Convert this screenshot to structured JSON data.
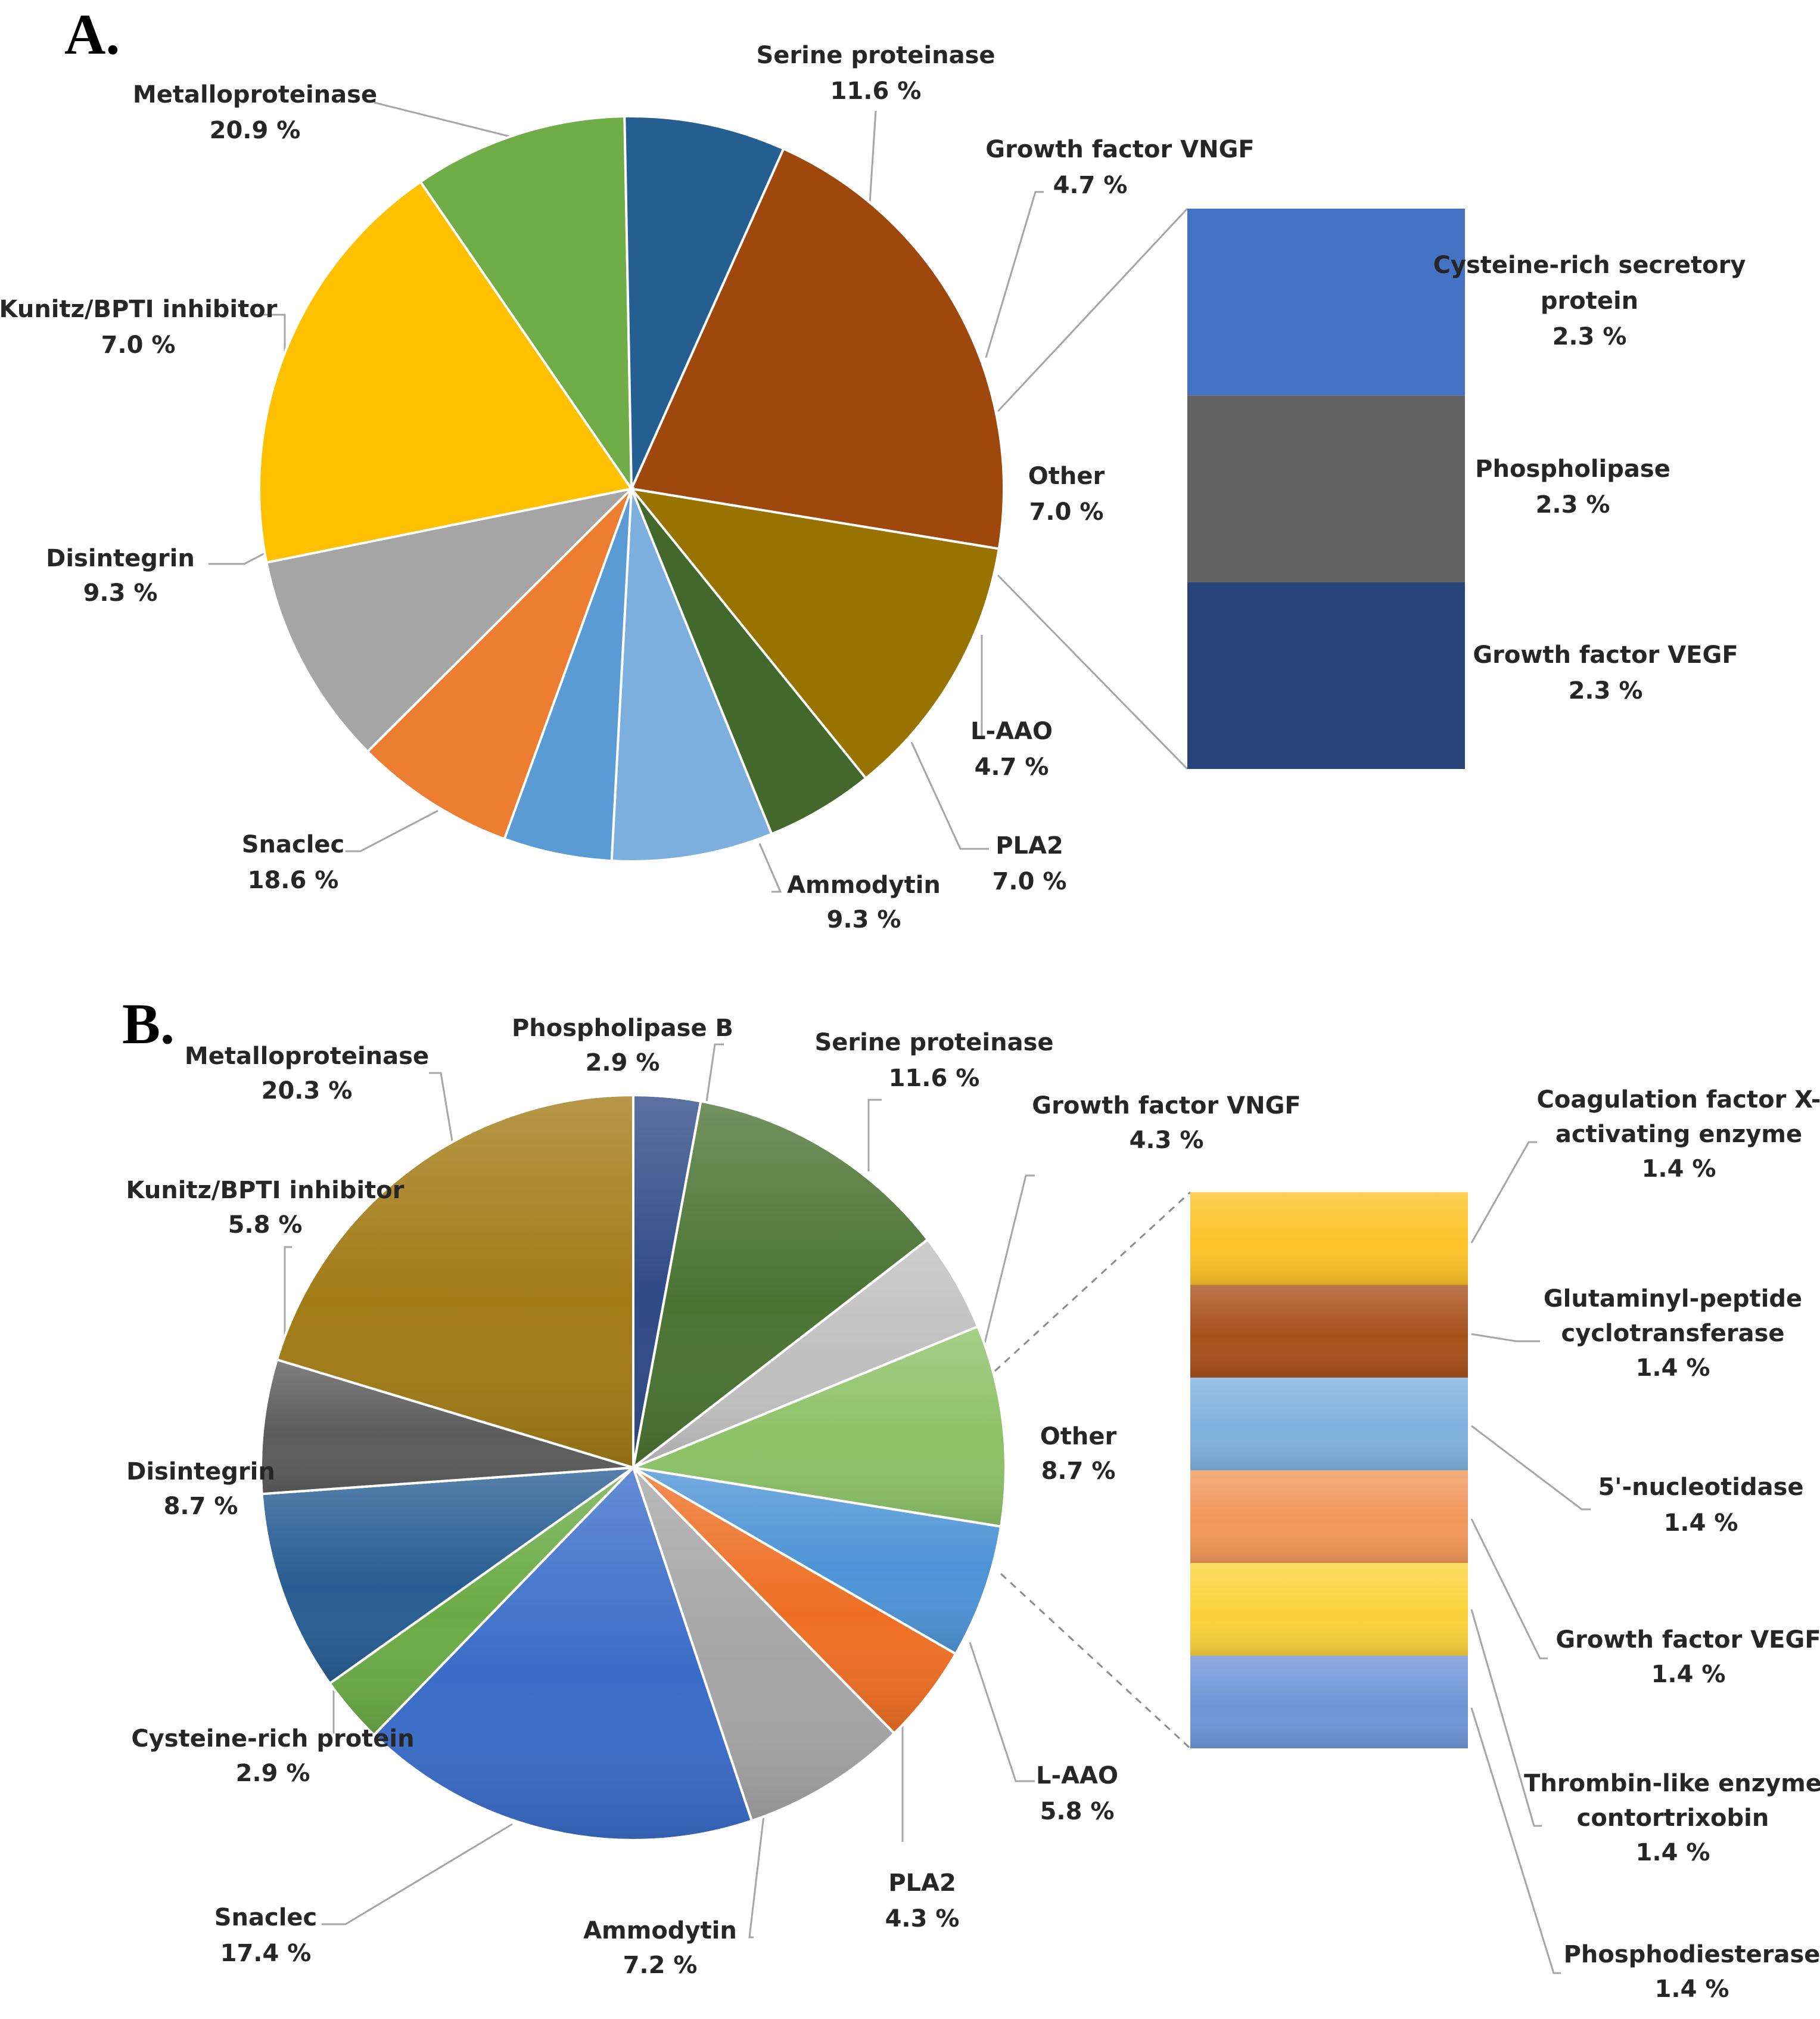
{
  "chart_data": [
    {
      "panel": "A.",
      "type": "bar-of-pie",
      "slices": [
        {
          "name": "Metalloproteinase",
          "value": 20.9,
          "value_label": "20.9 %",
          "color": "#9e480e"
        },
        {
          "name": "Serine proteinase",
          "value": 11.6,
          "value_label": "11.6 %",
          "color": "#997300"
        },
        {
          "name": "Growth factor VNGF",
          "value": 4.7,
          "value_label": "4.7 %",
          "color": "#43682b"
        },
        {
          "name": "Other",
          "value": 7.0,
          "value_label": "7.0 %",
          "color": "#7cafdd"
        },
        {
          "name": "L-AAO",
          "value": 4.7,
          "value_label": "4.7 %",
          "color": "#5b9bd5"
        },
        {
          "name": "PLA2",
          "value": 7.0,
          "value_label": "7.0 %",
          "color": "#ed7d31"
        },
        {
          "name": "Ammodytin",
          "value": 9.3,
          "value_label": "9.3 %",
          "color": "#a5a5a5"
        },
        {
          "name": "Snaclec",
          "value": 18.6,
          "value_label": "18.6 %",
          "color": "#ffc000"
        },
        {
          "name": "Disintegrin",
          "value": 9.3,
          "value_label": "9.3 %",
          "color": "#70ad47"
        },
        {
          "name": "Kunitz/BPTI inhibitor",
          "value": 7.0,
          "value_label": "7.0 %",
          "color": "#255e91"
        }
      ],
      "other_breakdown": [
        {
          "name_lines": [
            "Cysteine-rich secretory",
            "protein"
          ],
          "value": 2.3,
          "value_label": "2.3 %",
          "color": "#4472c4"
        },
        {
          "name_lines": [
            "Phospholipase"
          ],
          "value": 2.3,
          "value_label": "2.3 %",
          "color": "#636363"
        },
        {
          "name_lines": [
            "Growth factor VEGF"
          ],
          "value": 2.3,
          "value_label": "2.3 %",
          "color": "#264478"
        }
      ]
    },
    {
      "panel": "B.",
      "type": "bar-of-pie",
      "slices": [
        {
          "name": "Phospholipase  B",
          "value": 2.9,
          "value_label": "2.9 %",
          "color": "#2e4a87"
        },
        {
          "name": "Serine proteinase",
          "value": 11.6,
          "value_label": "11.6 %",
          "color": "#4a7332"
        },
        {
          "name": "Growth factor VNGF",
          "value": 4.3,
          "value_label": "4.3 %",
          "color": "#bfbfbf"
        },
        {
          "name": "Other",
          "value": 8.7,
          "value_label": "8.7 %",
          "color": "#8cc267"
        },
        {
          "name": "L-AAO",
          "value": 5.8,
          "value_label": "5.8 %",
          "color": "#4d94d6"
        },
        {
          "name": "PLA2",
          "value": 4.3,
          "value_label": "4.3 %",
          "color": "#ee6f24"
        },
        {
          "name": "Ammodytin",
          "value": 7.2,
          "value_label": "7.2 %",
          "color": "#a5a5a5"
        },
        {
          "name": "Snaclec",
          "value": 17.4,
          "value_label": "17.4 %",
          "color": "#3a6cc8"
        },
        {
          "name": "Cysteine-rich protein",
          "value": 2.9,
          "value_label": "2.9 %",
          "color": "#6bab46"
        },
        {
          "name": "Disintegrin",
          "value": 8.7,
          "value_label": "8.7 %",
          "color": "#285d93"
        },
        {
          "name": "Kunitz/BPTI inhibitor",
          "value": 5.8,
          "value_label": "5.8 %",
          "color": "#5c5c5c"
        },
        {
          "name": "Metalloproteinase",
          "value": 20.3,
          "value_label": "20.3 %",
          "color": "#a27b16"
        }
      ],
      "other_breakdown": [
        {
          "name_lines": [
            "Coagulation factor X-",
            "activating enzyme"
          ],
          "value": 1.4,
          "value_label": "1.4 %",
          "color": "#fcc226"
        },
        {
          "name_lines": [
            "Glutaminyl-peptide",
            "cyclotransferase"
          ],
          "value": 1.4,
          "value_label": "1.4 %",
          "color": "#a8501a"
        },
        {
          "name_lines": [
            "5'-nucleotidase"
          ],
          "value": 1.4,
          "value_label": "1.4 %",
          "color": "#7fb1df"
        },
        {
          "name_lines": [
            "Growth factor VEGF"
          ],
          "value": 1.4,
          "value_label": "1.4 %",
          "color": "#f2975a"
        },
        {
          "name_lines": [
            "Thrombin-like enzyme",
            "contortrixobin"
          ],
          "value": 1.4,
          "value_label": "1.4 %",
          "color": "#fbd23a"
        },
        {
          "name_lines": [
            "Phosphodiesterase"
          ],
          "value": 1.4,
          "value_label": "1.4 %",
          "color": "#6f95d8"
        }
      ]
    }
  ]
}
